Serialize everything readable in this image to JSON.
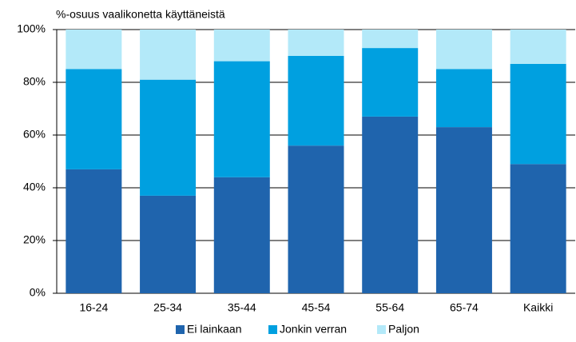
{
  "chart_data": {
    "type": "stacked_bar",
    "y_label": "%-osuus vaalikonetta käyttäneistä",
    "categories": [
      "16-24",
      "25-34",
      "35-44",
      "45-54",
      "55-64",
      "65-74",
      "Kaikki"
    ],
    "series": [
      {
        "name": "Ei lainkaan",
        "color": "#1f64ad",
        "values": [
          47,
          37,
          44,
          56,
          67,
          63,
          49
        ]
      },
      {
        "name": "Jonkin verran",
        "color": "#00a0e0",
        "values": [
          38,
          44,
          44,
          34,
          26,
          22,
          38
        ]
      },
      {
        "name": "Paljon",
        "color": "#b3e9f9",
        "values": [
          15,
          19,
          12,
          10,
          7,
          15,
          13
        ]
      }
    ],
    "ylim": [
      0,
      100
    ],
    "yticks": [
      {
        "value": 0,
        "label": "0%"
      },
      {
        "value": 20,
        "label": "20%"
      },
      {
        "value": 40,
        "label": "40%"
      },
      {
        "value": 60,
        "label": "60%"
      },
      {
        "value": 80,
        "label": "80%"
      },
      {
        "value": 100,
        "label": "100%"
      }
    ],
    "grid": true,
    "legend": "bottom"
  }
}
